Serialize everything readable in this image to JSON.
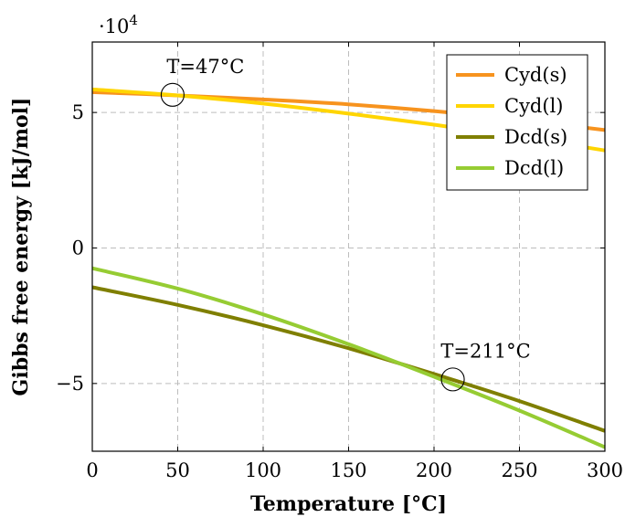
{
  "chart_data": {
    "type": "line",
    "xlabel": "Temperature [°C]",
    "ylabel": "Gibbs free energy [kJ/mol]",
    "xlim": [
      0,
      300
    ],
    "ylim": [
      -75000,
      76000
    ],
    "xticks": [
      0,
      50,
      100,
      150,
      200,
      250,
      300
    ],
    "xtick_labels": [
      "0",
      "50",
      "100",
      "150",
      "200",
      "250",
      "300"
    ],
    "yticks": [
      -50000,
      0,
      50000
    ],
    "ytick_labels": [
      "−5",
      "0",
      "5"
    ],
    "y_multiplier": {
      "base": "·10",
      "exponent": "4"
    },
    "grid": true,
    "legend_position": "top-right",
    "series": [
      {
        "name": "Cyd(s)",
        "color": "#f7931e",
        "x": [
          0,
          50,
          100,
          150,
          200,
          250,
          300
        ],
        "y": [
          57500,
          56300,
          54800,
          53000,
          50500,
          47300,
          43500
        ]
      },
      {
        "name": "Cyd(l)",
        "color": "#ffd500",
        "x": [
          0,
          50,
          100,
          150,
          200,
          250,
          300
        ],
        "y": [
          58500,
          56300,
          53300,
          49600,
          45500,
          41000,
          36000
        ]
      },
      {
        "name": "Dcd(s)",
        "color": "#7f7f00",
        "x": [
          0,
          50,
          100,
          150,
          200,
          250,
          300
        ],
        "y": [
          -14500,
          -21000,
          -28500,
          -37000,
          -46500,
          -56500,
          -67500
        ]
      },
      {
        "name": "Dcd(l)",
        "color": "#96cc33",
        "x": [
          0,
          50,
          100,
          150,
          200,
          250,
          300
        ],
        "y": [
          -7500,
          -15000,
          -24500,
          -35500,
          -47500,
          -60000,
          -73500
        ]
      }
    ],
    "annotations": [
      {
        "text": "T=47°C",
        "x": 47,
        "y": 56500
      },
      {
        "text": "T=211°C",
        "x": 211,
        "y": -48500
      }
    ]
  }
}
